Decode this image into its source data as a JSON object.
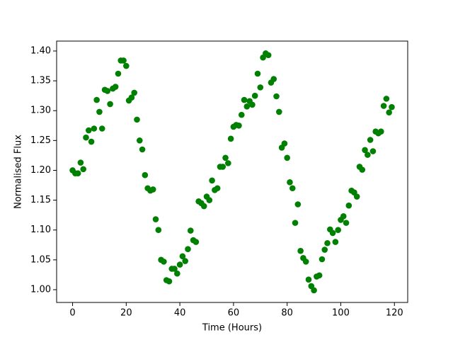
{
  "chart_data": {
    "type": "scatter",
    "x_label": "Time (Hours)",
    "y_label": "Normalised Flux",
    "color": "#008000",
    "x": [
      0,
      1,
      2,
      3,
      4,
      5,
      6,
      7,
      8,
      9,
      10,
      11,
      12,
      13,
      14,
      15,
      16,
      17,
      18,
      19,
      20,
      21,
      22,
      23,
      24,
      25,
      26,
      27,
      28,
      29,
      30,
      31,
      32,
      33,
      34,
      35,
      36,
      37,
      38,
      39,
      40,
      41,
      42,
      43,
      44,
      45,
      46,
      47,
      48,
      49,
      50,
      51,
      52,
      53,
      54,
      55,
      56,
      57,
      58,
      59,
      60,
      61,
      62,
      63,
      64,
      65,
      66,
      67,
      68,
      69,
      70,
      71,
      72,
      73,
      74,
      75,
      76,
      77,
      78,
      79,
      80,
      81,
      82,
      83,
      84,
      85,
      86,
      87,
      88,
      89,
      90,
      91,
      92,
      93,
      94,
      95,
      96,
      97,
      98,
      99,
      100,
      101,
      102,
      103,
      104,
      105,
      106,
      107,
      108,
      109,
      110,
      111,
      112,
      113,
      114,
      115,
      116,
      117,
      118,
      119
    ],
    "values": [
      1.2,
      1.195,
      1.195,
      1.213,
      1.202,
      1.255,
      1.267,
      1.248,
      1.27,
      1.318,
      1.298,
      1.27,
      1.335,
      1.333,
      1.311,
      1.337,
      1.34,
      1.362,
      1.384,
      1.384,
      1.375,
      1.317,
      1.322,
      1.33,
      1.285,
      1.25,
      1.235,
      1.192,
      1.17,
      1.166,
      1.168,
      1.118,
      1.1,
      1.05,
      1.047,
      1.016,
      1.014,
      1.035,
      1.035,
      1.027,
      1.042,
      1.056,
      1.048,
      1.068,
      1.099,
      1.083,
      1.08,
      1.148,
      1.145,
      1.14,
      1.156,
      1.15,
      1.183,
      1.167,
      1.17,
      1.206,
      1.206,
      1.221,
      1.212,
      1.253,
      1.273,
      1.276,
      1.275,
      1.293,
      1.318,
      1.307,
      1.316,
      1.31,
      1.325,
      1.362,
      1.339,
      1.389,
      1.396,
      1.393,
      1.347,
      1.353,
      1.324,
      1.298,
      1.238,
      1.245,
      1.221,
      1.18,
      1.17,
      1.112,
      1.143,
      1.065,
      1.053,
      1.047,
      1.017,
      1.006,
      0.999,
      1.022,
      1.024,
      1.051,
      1.067,
      1.078,
      1.101,
      1.095,
      1.08,
      1.1,
      1.117,
      1.123,
      1.112,
      1.141,
      1.166,
      1.163,
      1.156,
      1.206,
      1.201,
      1.234,
      1.226,
      1.251,
      1.232,
      1.265,
      1.262,
      1.265,
      1.308,
      1.32,
      1.297,
      1.306
    ],
    "xlim": [
      -5.95,
      124.95
    ],
    "xticks": [
      0,
      20,
      40,
      60,
      80,
      100,
      120
    ],
    "ylim": [
      0.9786,
      1.4166
    ],
    "yticks": [
      {
        "value": 1.0,
        "label": "1.00"
      },
      {
        "value": 1.05,
        "label": "1.05"
      },
      {
        "value": 1.1,
        "label": "1.10"
      },
      {
        "value": 1.15,
        "label": "1.15"
      },
      {
        "value": 1.2,
        "label": "1.20"
      },
      {
        "value": 1.25,
        "label": "1.25"
      },
      {
        "value": 1.3,
        "label": "1.30"
      },
      {
        "value": 1.35,
        "label": "1.35"
      },
      {
        "value": 1.4,
        "label": "1.40"
      }
    ],
    "grid": false
  }
}
